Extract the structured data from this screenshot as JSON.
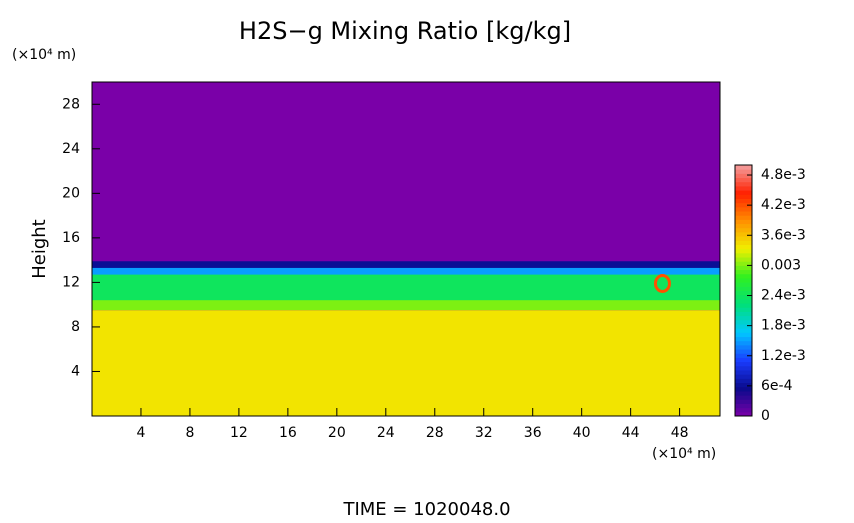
{
  "chart_data": {
    "type": "heatmap",
    "title": "H2S−g Mixing Ratio [kg/kg]",
    "ylabel": "Height",
    "yunit": "(×10⁴ m)",
    "xunit": "(×10⁴ m)",
    "annotation": "TIME = 1020048.0",
    "xlim": [
      0,
      51.3
    ],
    "ylim": [
      0,
      30
    ],
    "xticks": [
      4,
      8,
      12,
      16,
      20,
      24,
      28,
      32,
      36,
      40,
      44,
      48
    ],
    "yticks": [
      4,
      8,
      12,
      16,
      20,
      24,
      28
    ],
    "clim": [
      0,
      0.005
    ],
    "colormap": [
      "#7a00a8",
      "#0a0a8c",
      "#1a3cff",
      "#00c8ff",
      "#00e07a",
      "#30f020",
      "#f0f000",
      "#ff9000",
      "#ff2000",
      "#f4a0a0"
    ],
    "cticks": [
      0,
      {
        "value": 0.0006,
        "label": "6e-4"
      },
      {
        "value": 0.0012,
        "label": "1.2e-3"
      },
      {
        "value": 0.0018,
        "label": "1.8e-3"
      },
      {
        "value": 0.0024,
        "label": "2.4e-3"
      },
      0.003,
      {
        "value": 0.0036,
        "label": "3.6e-3"
      },
      {
        "value": 0.0042,
        "label": "4.2e-3"
      },
      {
        "value": 0.0048,
        "label": "4.8e-3"
      }
    ],
    "regions": [
      {
        "ymin": 0,
        "ymax": 30,
        "value": 0
      },
      {
        "ymin": 12.9,
        "ymax": 13.9,
        "value": 0.0006
      },
      {
        "ymin": 12.4,
        "ymax": 13.3,
        "value": 0.0015
      },
      {
        "ymin": 10.3,
        "ymax": 12.7,
        "value": 0.0024
      },
      {
        "ymin": 9.5,
        "ymax": 10.4,
        "value": 0.003
      },
      {
        "ymin": 0,
        "ymax": 9.5,
        "value": 0.0034
      }
    ],
    "features": [
      {
        "x": 46.6,
        "y": 11.9,
        "value": 0.0042
      }
    ]
  }
}
